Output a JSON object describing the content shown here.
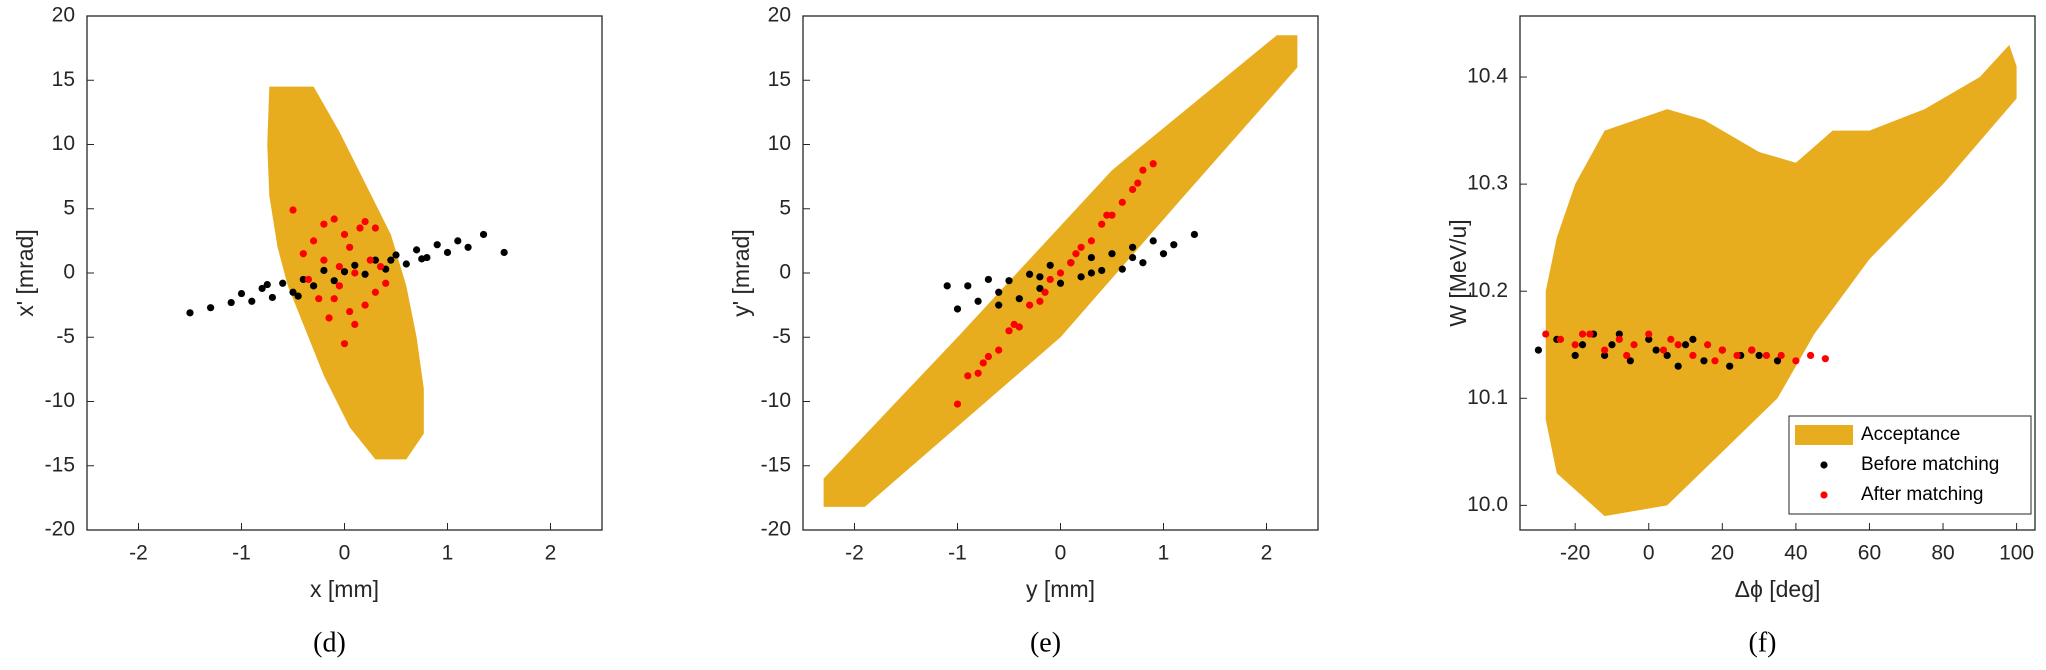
{
  "chart_data": [
    {
      "type": "scatter",
      "caption": "(d)",
      "xlabel": "x [mm]",
      "ylabel": "x' [mrad]",
      "xlim": [
        -2.5,
        2.5
      ],
      "xticks": [
        -2,
        -1,
        0,
        1,
        2
      ],
      "ylim": [
        -20,
        20
      ],
      "yticks": [
        -20,
        -15,
        -10,
        -5,
        0,
        5,
        10,
        15,
        20
      ],
      "series": [
        {
          "type": "area",
          "color": "#e8ad1f",
          "x": [
            -0.73,
            -0.3,
            -0.05,
            0.2,
            0.45,
            0.6,
            0.7,
            0.77,
            0.77,
            0.6,
            0.3,
            0.05,
            -0.2,
            -0.4,
            -0.55,
            -0.65,
            -0.73,
            -0.75
          ],
          "values": [
            14.5,
            14.5,
            11,
            7,
            3,
            -1,
            -5,
            -9,
            -12.5,
            -14.5,
            -14.5,
            -12,
            -8,
            -4,
            -1,
            2,
            6,
            10
          ]
        },
        {
          "type": "scatter",
          "color": "#000000",
          "x": [
            -1.5,
            -1.3,
            -1.1,
            -1.0,
            -0.9,
            -0.8,
            -0.7,
            -0.6,
            -0.5,
            -0.4,
            -0.3,
            -0.2,
            -0.1,
            0,
            0.1,
            0.2,
            0.3,
            0.4,
            0.5,
            0.6,
            0.7,
            0.8,
            0.9,
            1.0,
            1.1,
            1.2,
            1.35,
            1.55,
            -0.75,
            -0.45,
            0.45,
            0.75
          ],
          "values": [
            -3.1,
            -2.7,
            -2.3,
            -1.6,
            -2.2,
            -1.2,
            -1.9,
            -0.8,
            -1.5,
            -0.5,
            -1.0,
            0.2,
            -0.6,
            0.1,
            0.6,
            -0.1,
            1.0,
            0.3,
            1.4,
            0.7,
            1.8,
            1.2,
            2.2,
            1.6,
            2.5,
            2.0,
            3.0,
            1.6,
            -0.9,
            -1.8,
            1.0,
            1.1
          ]
        },
        {
          "type": "scatter",
          "color": "#ff0000",
          "x": [
            -0.5,
            -0.4,
            -0.35,
            -0.3,
            -0.25,
            -0.2,
            -0.15,
            -0.1,
            -0.05,
            0,
            0.05,
            0.1,
            0.15,
            0.2,
            0.25,
            0.3,
            0.35,
            0.4,
            0.0,
            -0.1,
            0.1,
            0.2,
            -0.2,
            0.05,
            -0.05,
            0.3
          ],
          "values": [
            4.9,
            1.5,
            -0.5,
            2.5,
            -2.0,
            3.8,
            -3.5,
            4.2,
            0.5,
            -5.5,
            2.0,
            -4.0,
            3.5,
            -2.5,
            1.0,
            -1.5,
            0.5,
            -0.8,
            3.0,
            -2.0,
            0.0,
            4.0,
            1.0,
            -3.0,
            -1.0,
            3.5
          ]
        }
      ]
    },
    {
      "type": "scatter",
      "caption": "(e)",
      "xlabel": "y [mm]",
      "ylabel": "y' [mrad]",
      "xlim": [
        -2.5,
        2.5
      ],
      "xticks": [
        -2,
        -1,
        0,
        1,
        2
      ],
      "ylim": [
        -20,
        20
      ],
      "yticks": [
        -20,
        -15,
        -10,
        -5,
        0,
        5,
        10,
        15,
        20
      ],
      "series": [
        {
          "type": "area",
          "color": "#e8ad1f",
          "x": [
            -2.3,
            -2.3,
            -1.0,
            0.5,
            2.1,
            2.3,
            2.3,
            1.2,
            0,
            -1.9
          ],
          "values": [
            -18.2,
            -16,
            -5,
            8,
            18.5,
            18.5,
            16,
            6,
            -5,
            -18.2
          ]
        },
        {
          "type": "scatter",
          "color": "#000000",
          "x": [
            -1.1,
            -1.0,
            -0.9,
            -0.8,
            -0.7,
            -0.6,
            -0.5,
            -0.4,
            -0.3,
            -0.2,
            -0.1,
            0,
            0.1,
            0.2,
            0.3,
            0.4,
            0.5,
            0.6,
            0.7,
            0.8,
            0.9,
            1.0,
            1.1,
            1.3,
            -0.6,
            -0.2,
            0.3,
            0.7
          ],
          "values": [
            -1.0,
            -2.8,
            -1.0,
            -2.2,
            -0.5,
            -2.5,
            -0.6,
            -2.0,
            -0.1,
            -1.2,
            0.6,
            -0.8,
            0.8,
            -0.3,
            1.2,
            0.2,
            1.5,
            0.3,
            2.0,
            0.8,
            2.5,
            1.5,
            2.2,
            3.0,
            -1.5,
            -0.3,
            0.0,
            1.2
          ]
        },
        {
          "type": "scatter",
          "color": "#ff0000",
          "x": [
            -1.0,
            -0.9,
            -0.8,
            -0.7,
            -0.6,
            -0.5,
            -0.4,
            -0.3,
            -0.2,
            -0.1,
            0,
            0.1,
            0.2,
            0.3,
            0.4,
            0.5,
            0.6,
            0.7,
            0.8,
            0.9,
            -0.75,
            -0.45,
            -0.15,
            0.15,
            0.45,
            0.75
          ],
          "values": [
            -10.2,
            -8.0,
            -7.8,
            -6.5,
            -6.0,
            -4.5,
            -4.2,
            -2.5,
            -2.2,
            -0.5,
            0.0,
            0.8,
            2.0,
            2.5,
            3.8,
            4.5,
            5.5,
            6.5,
            8.0,
            8.5,
            -7.0,
            -4.0,
            -1.5,
            1.5,
            4.5,
            7.0
          ]
        }
      ]
    },
    {
      "type": "scatter",
      "caption": "(f)",
      "xlabel": "Δϕ [deg]",
      "ylabel": "W [MeV/u]",
      "xlim": [
        -35,
        105
      ],
      "xticks": [
        -20,
        0,
        20,
        40,
        60,
        80,
        100
      ],
      "ylim": [
        9.977,
        10.457
      ],
      "yticks": [
        {
          "value": 10,
          "label": "10.0"
        },
        10.1,
        10.2,
        10.3,
        10.4
      ],
      "legend": "lower right",
      "series": [
        {
          "type": "area",
          "name": "Acceptance",
          "color": "#e8ad1f",
          "x": [
            -12,
            5,
            15,
            30,
            40,
            50,
            60,
            75,
            90,
            98,
            100,
            100,
            80,
            60,
            45,
            35,
            20,
            5,
            -12,
            -25,
            -28,
            -28,
            -25,
            -20
          ],
          "values": [
            10.35,
            10.37,
            10.36,
            10.33,
            10.32,
            10.35,
            10.35,
            10.37,
            10.4,
            10.43,
            10.41,
            10.38,
            10.3,
            10.23,
            10.16,
            10.1,
            10.05,
            10.0,
            9.99,
            10.03,
            10.08,
            10.2,
            10.25,
            10.3
          ]
        },
        {
          "type": "scatter",
          "name": "Before matching",
          "color": "#000000",
          "x": [
            -30,
            -25,
            -20,
            -15,
            -10,
            -5,
            0,
            5,
            10,
            15,
            20,
            25,
            30,
            35,
            -18,
            -8,
            2,
            12,
            22,
            -12,
            8,
            28
          ],
          "values": [
            10.145,
            10.155,
            10.14,
            10.16,
            10.15,
            10.135,
            10.155,
            10.14,
            10.15,
            10.135,
            10.145,
            10.14,
            10.14,
            10.135,
            10.15,
            10.16,
            10.145,
            10.155,
            10.13,
            10.14,
            10.13,
            10.145
          ]
        },
        {
          "type": "scatter",
          "name": "After matching",
          "color": "#ff0000",
          "x": [
            -28,
            -24,
            -20,
            -16,
            -12,
            -8,
            -4,
            0,
            4,
            8,
            12,
            16,
            20,
            24,
            28,
            32,
            36,
            40,
            44,
            48,
            -18,
            -6,
            6,
            18
          ],
          "values": [
            10.16,
            10.155,
            10.15,
            10.16,
            10.145,
            10.155,
            10.15,
            10.16,
            10.145,
            10.15,
            10.14,
            10.15,
            10.145,
            10.14,
            10.145,
            10.14,
            10.14,
            10.135,
            10.14,
            10.137,
            10.16,
            10.14,
            10.155,
            10.135
          ]
        }
      ]
    }
  ]
}
